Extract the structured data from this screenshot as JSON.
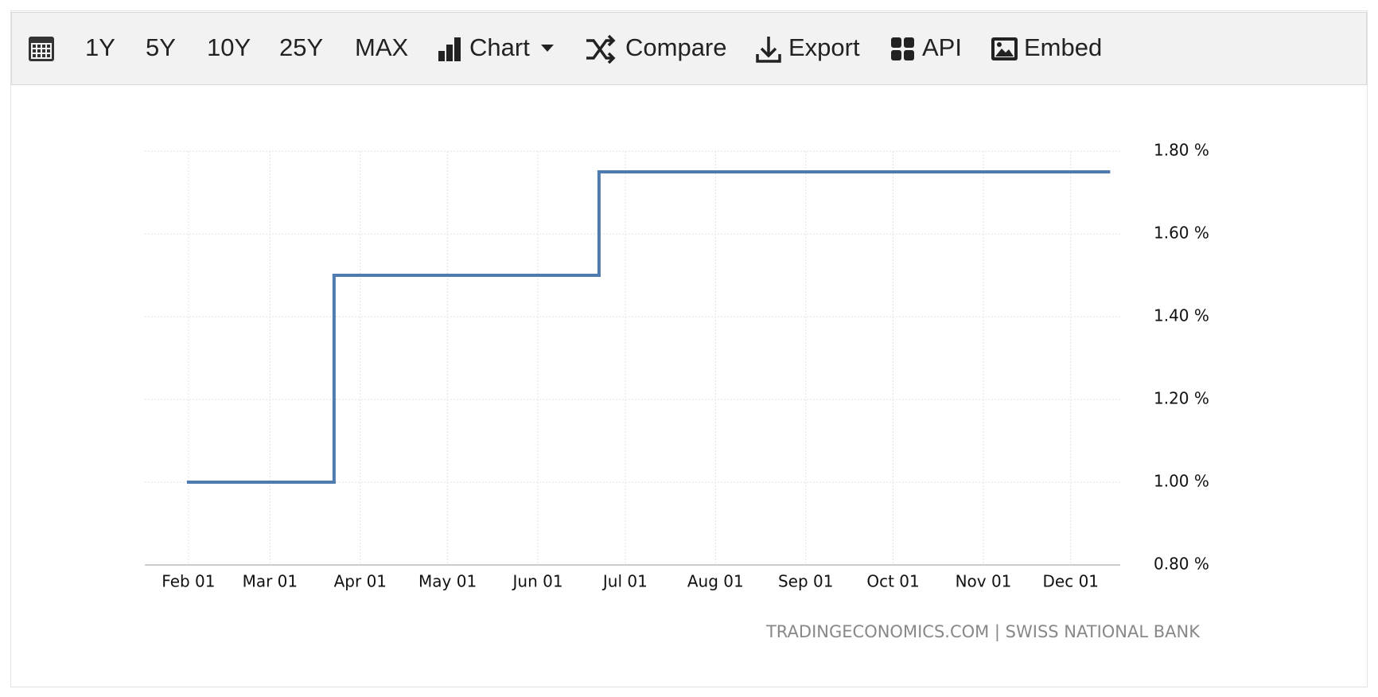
{
  "toolbar": {
    "buttons": [
      "1Y",
      "5Y",
      "10Y",
      "25Y",
      "MAX",
      "Chart",
      "Compare",
      "Export",
      "API",
      "Embed"
    ]
  },
  "chart_data": {
    "type": "line",
    "step": true,
    "x": [
      "Feb 01",
      "Mar 23",
      "Jun 22",
      "Dec 14"
    ],
    "series": [
      {
        "color": "#4f7cb0",
        "values": [
          1.0,
          1.5,
          1.75,
          1.75
        ]
      }
    ],
    "xlim": [
      "Jan 17",
      "Dec 18"
    ],
    "xticks": [
      "Feb 01",
      "Mar 01",
      "Apr 01",
      "May 01",
      "Jun 01",
      "Jul 01",
      "Aug 01",
      "Sep 01",
      "Oct 01",
      "Nov 01",
      "Dec 01"
    ],
    "ylim": [
      0.8,
      1.8
    ],
    "yticks": [
      {
        "value": 0.8,
        "label": "0.80 %"
      },
      {
        "value": 1.0,
        "label": "1.00 %"
      },
      {
        "value": 1.2,
        "label": "1.20 %"
      },
      {
        "value": 1.4,
        "label": "1.40 %"
      },
      {
        "value": 1.6,
        "label": "1.60 %"
      },
      {
        "value": 1.8,
        "label": "1.80 %"
      }
    ],
    "grid": true,
    "source": "TRADINGECONOMICS.COM | SWISS NATIONAL BANK"
  }
}
